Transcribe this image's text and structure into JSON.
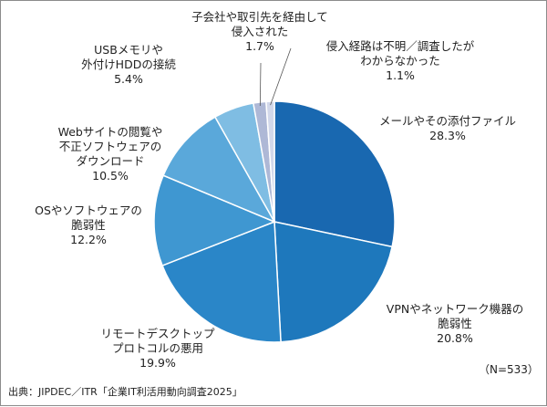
{
  "chart_data": {
    "type": "pie",
    "categories": [
      "メールやその添付ファイル",
      "VPNやネットワーク機器の脆弱性",
      "リモートデスクトップ プロトコルの悪用",
      "OSやソフトウェアの 脆弱性",
      "Webサイトの閲覧や 不正ソフトウェアの ダウンロード",
      "USBメモリや 外付けHDDの接続",
      "子会社や取引先を経由して 侵入された",
      "侵入経路は不明／調査したが わからなかった"
    ],
    "values": [
      28.3,
      20.8,
      19.9,
      12.2,
      10.5,
      5.4,
      1.7,
      1.1
    ],
    "value_labels": [
      "28.3%",
      "20.8%",
      "19.9%",
      "12.2%",
      "10.5%",
      "5.4%",
      "1.7%",
      "1.1%"
    ],
    "colors": [
      "#1968b0",
      "#1e78bc",
      "#2a86c8",
      "#3f97d1",
      "#5aa8da",
      "#7fbde3",
      "#aeb8d6",
      "#d2d8ea"
    ],
    "start": "12 o'clock",
    "direction": "clockwise",
    "legend": "none",
    "labels": [
      {
        "lines": [
          "メールやその添付ファイル"
        ],
        "value": "28.3%"
      },
      {
        "lines": [
          "VPNやネットワーク機器の",
          "脆弱性"
        ],
        "value": "20.8%"
      },
      {
        "lines": [
          "リモートデスクトップ",
          "プロトコルの悪用"
        ],
        "value": "19.9%"
      },
      {
        "lines": [
          "OSやソフトウェアの",
          "脆弱性"
        ],
        "value": "12.2%"
      },
      {
        "lines": [
          "Webサイトの閲覧や",
          "不正ソフトウェアの",
          "ダウンロード"
        ],
        "value": "10.5%"
      },
      {
        "lines": [
          "USBメモリや",
          "外付けHDDの接続"
        ],
        "value": "5.4%"
      },
      {
        "lines": [
          "子会社や取引先を経由して",
          "侵入された"
        ],
        "value": "1.7%"
      },
      {
        "lines": [
          "侵入経路は不明／調査したが",
          "わからなかった"
        ],
        "value": "1.1%"
      }
    ],
    "total": "（N=533）",
    "source": "出典：JIPDEC／ITR「企業IT利活用動向調査2025」"
  }
}
